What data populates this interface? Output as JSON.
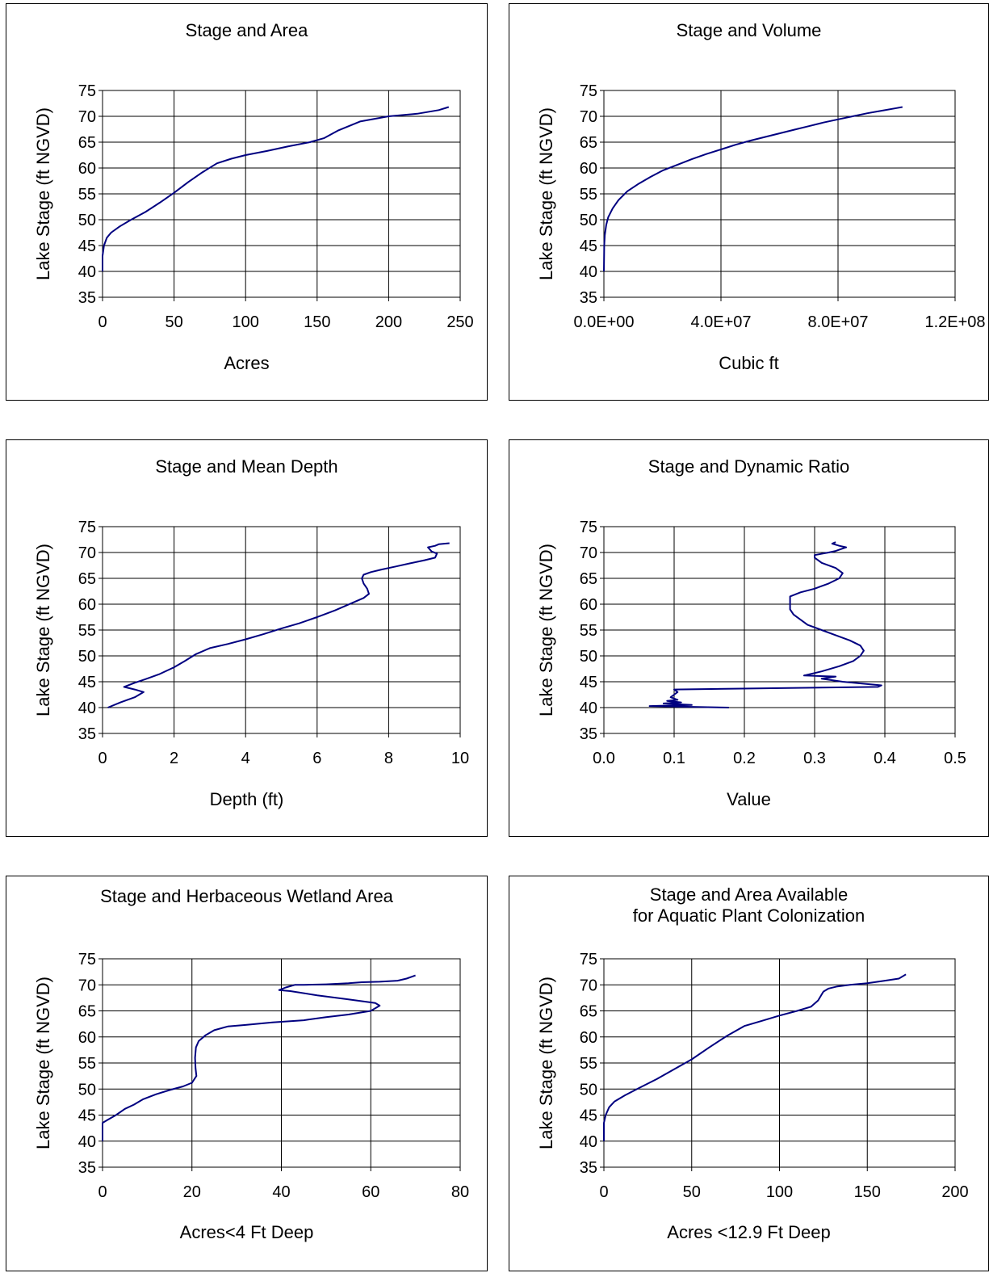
{
  "chart_data": [
    {
      "type": "line",
      "title": "Stage and Area",
      "xlabel": "Acres",
      "ylabel": "Lake Stage (ft NGVD)",
      "xlim": [
        0,
        250
      ],
      "ylim": [
        35,
        75
      ],
      "xticks": [
        "0",
        "50",
        "100",
        "150",
        "200",
        "250"
      ],
      "yticks": [
        "35",
        "40",
        "45",
        "50",
        "55",
        "60",
        "65",
        "70",
        "75"
      ],
      "grid": true,
      "series": [
        {
          "x": [
            0,
            0,
            1,
            3,
            6,
            12,
            20,
            30,
            40,
            50,
            60,
            70,
            80,
            90,
            100,
            115,
            130,
            145,
            155,
            165,
            180,
            200,
            220,
            235,
            242
          ],
          "y": [
            40,
            43,
            45,
            46.5,
            47.5,
            48.7,
            50,
            51.5,
            53.3,
            55.2,
            57.3,
            59.2,
            60.9,
            61.8,
            62.5,
            63.3,
            64.2,
            65,
            65.8,
            67.3,
            69,
            70,
            70.5,
            71.2,
            71.8
          ]
        }
      ]
    },
    {
      "type": "line",
      "title": "Stage and Volume",
      "xlabel": "Cubic ft",
      "ylabel": "Lake Stage (ft NGVD)",
      "xlim": [
        0,
        120000000
      ],
      "ylim": [
        35,
        75
      ],
      "xticks": [
        "0.0E+00",
        "4.0E+07",
        "8.0E+07",
        "1.2E+08"
      ],
      "yticks": [
        "35",
        "40",
        "45",
        "50",
        "55",
        "60",
        "65",
        "70",
        "75"
      ],
      "grid": true,
      "series": [
        {
          "x": [
            0,
            100000,
            300000,
            800000,
            1500000,
            3000000,
            5000000,
            8000000,
            12000000,
            16000000,
            20000000,
            25000000,
            30000000,
            35000000,
            40000000,
            45000000,
            50000000,
            55000000,
            60000000,
            65000000,
            70000000,
            75000000,
            80000000,
            85000000,
            90000000,
            95000000,
            100000000,
            102000000
          ],
          "y": [
            40,
            45,
            47,
            49,
            50.5,
            52.2,
            53.8,
            55.5,
            57,
            58.3,
            59.5,
            60.6,
            61.7,
            62.7,
            63.6,
            64.5,
            65.3,
            66,
            66.7,
            67.4,
            68.1,
            68.8,
            69.4,
            70,
            70.6,
            71.1,
            71.6,
            71.8
          ]
        }
      ]
    },
    {
      "type": "line",
      "title": "Stage and Mean Depth",
      "xlabel": "Depth (ft)",
      "ylabel": "Lake Stage (ft NGVD)",
      "xlim": [
        0,
        10
      ],
      "ylim": [
        35,
        75
      ],
      "xticks": [
        "0",
        "2",
        "4",
        "6",
        "8",
        "10"
      ],
      "yticks": [
        "35",
        "40",
        "45",
        "50",
        "55",
        "60",
        "65",
        "70",
        "75"
      ],
      "grid": true,
      "series": [
        {
          "x": [
            0.15,
            0.5,
            0.9,
            1.15,
            0.9,
            0.6,
            0.9,
            1.2,
            1.6,
            2,
            2.3,
            2.6,
            3,
            3.5,
            4,
            4.5,
            5,
            5.5,
            6,
            6.5,
            7,
            7.3,
            7.45,
            7.4,
            7.3,
            7.25,
            7.3,
            7.5,
            7.8,
            8.2,
            8.6,
            9,
            9.3,
            9.35,
            9.2,
            9.1,
            9.3,
            9.4,
            9.7
          ],
          "y": [
            40,
            41,
            42,
            43,
            43.5,
            44,
            44.8,
            45.5,
            46.5,
            47.8,
            49,
            50.3,
            51.5,
            52.3,
            53.2,
            54.2,
            55.3,
            56.3,
            57.5,
            58.8,
            60.3,
            61.2,
            62,
            63,
            64,
            65,
            65.7,
            66.2,
            66.7,
            67.3,
            67.9,
            68.5,
            69,
            69.8,
            70.2,
            71,
            71.3,
            71.6,
            71.8
          ]
        }
      ]
    },
    {
      "type": "line",
      "title": "Stage and Dynamic Ratio",
      "xlabel": "Value",
      "ylabel": "Lake Stage (ft NGVD)",
      "xlim": [
        0,
        0.5
      ],
      "ylim": [
        35,
        75
      ],
      "xticks": [
        "0.0",
        "0.1",
        "0.2",
        "0.3",
        "0.4",
        "0.5"
      ],
      "yticks": [
        "35",
        "40",
        "45",
        "50",
        "55",
        "60",
        "65",
        "70",
        "75"
      ],
      "grid": true,
      "series": [
        {
          "x": [
            0.178,
            0.065,
            0.125,
            0.085,
            0.11,
            0.09,
            0.105,
            0.095,
            0.1,
            0.105,
            0.1,
            0.39,
            0.395,
            0.34,
            0.31,
            0.33,
            0.285,
            0.31,
            0.335,
            0.355,
            0.365,
            0.37,
            0.365,
            0.35,
            0.33,
            0.31,
            0.29,
            0.28,
            0.27,
            0.265,
            0.265,
            0.28,
            0.3,
            0.32,
            0.335,
            0.34,
            0.33,
            0.31,
            0.3,
            0.3,
            0.32,
            0.33,
            0.345,
            0.335,
            0.325,
            0.33
          ],
          "y": [
            40,
            40.3,
            40.5,
            40.8,
            41,
            41.3,
            41.5,
            42,
            42.5,
            43,
            43.5,
            44,
            44.3,
            45,
            45.6,
            46,
            46.2,
            47,
            48,
            49,
            50,
            51,
            52,
            53,
            54,
            55,
            56,
            57,
            58,
            59,
            61.5,
            62.3,
            63,
            64,
            65,
            66,
            67,
            68,
            69,
            69.5,
            70,
            70.3,
            71,
            71.3,
            71.7,
            72
          ]
        }
      ]
    },
    {
      "type": "line",
      "title": "Stage and Herbaceous Wetland Area",
      "xlabel": "Acres<4 Ft Deep",
      "ylabel": "Lake Stage (ft NGVD)",
      "xlim": [
        0,
        80
      ],
      "ylim": [
        35,
        75
      ],
      "xticks": [
        "0",
        "20",
        "40",
        "60",
        "80"
      ],
      "yticks": [
        "35",
        "40",
        "45",
        "50",
        "55",
        "60",
        "65",
        "70",
        "75"
      ],
      "grid": true,
      "series": [
        {
          "x": [
            0,
            0,
            1,
            3,
            5,
            7,
            9,
            12,
            15,
            18,
            20,
            21,
            20.8,
            20.7,
            20.9,
            21.5,
            23,
            25,
            28,
            32,
            38,
            45,
            50,
            55,
            60,
            62,
            61,
            55,
            48,
            42,
            39.5,
            41,
            43,
            45,
            50,
            55,
            58,
            62,
            66,
            68,
            70
          ],
          "y": [
            40,
            43.5,
            44,
            45,
            46.2,
            47,
            48,
            49,
            49.8,
            50.5,
            51.2,
            52.5,
            54,
            56,
            58,
            59.2,
            60.3,
            61.3,
            62,
            62.3,
            62.8,
            63.2,
            63.8,
            64.3,
            65,
            66,
            66.5,
            67.2,
            68,
            68.8,
            69,
            69.5,
            70,
            70,
            70.1,
            70.3,
            70.5,
            70.6,
            70.8,
            71.2,
            71.8
          ]
        }
      ]
    },
    {
      "type": "line",
      "title": "Stage and Area Available\nfor Aquatic Plant Colonization",
      "xlabel": "Acres <12.9 Ft Deep",
      "ylabel": "Lake Stage (ft NGVD)",
      "xlim": [
        0,
        200
      ],
      "ylim": [
        35,
        75
      ],
      "xticks": [
        "0",
        "50",
        "100",
        "150",
        "200"
      ],
      "yticks": [
        "35",
        "40",
        "45",
        "50",
        "55",
        "60",
        "65",
        "70",
        "75"
      ],
      "grid": true,
      "series": [
        {
          "x": [
            0,
            0,
            1,
            3,
            6,
            12,
            20,
            30,
            40,
            50,
            60,
            70,
            80,
            90,
            100,
            110,
            118,
            122,
            125,
            128,
            133,
            140,
            150,
            160,
            168,
            172
          ],
          "y": [
            40,
            43.5,
            45,
            46.5,
            47.6,
            48.8,
            50.2,
            51.9,
            53.8,
            55.7,
            58,
            60.2,
            62.1,
            63.1,
            64.1,
            65,
            65.8,
            67,
            68.7,
            69.3,
            69.7,
            70,
            70.3,
            70.8,
            71.2,
            72
          ]
        }
      ]
    }
  ]
}
